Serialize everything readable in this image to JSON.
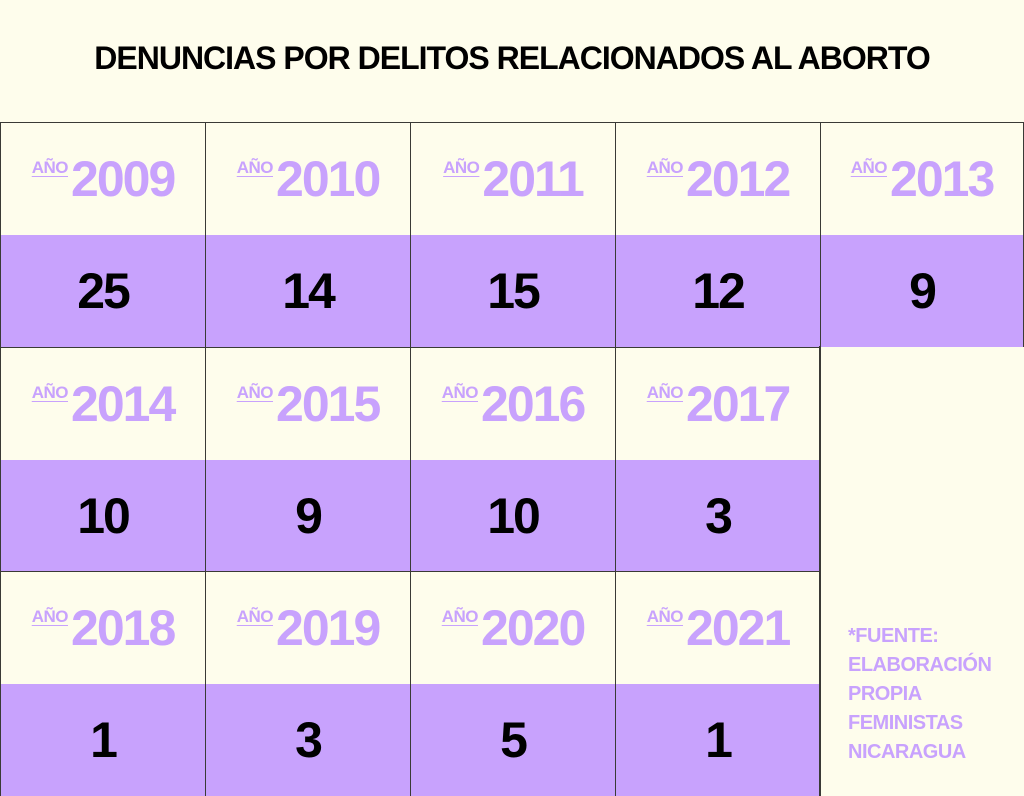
{
  "chart_data": {
    "type": "table",
    "title": "DENUNCIAS POR DELITOS RELACIONADOS AL ABORTO",
    "year_prefix": "AÑO",
    "categories": [
      "2009",
      "2010",
      "2011",
      "2012",
      "2013",
      "2014",
      "2015",
      "2016",
      "2017",
      "2018",
      "2019",
      "2020",
      "2021"
    ],
    "values": [
      25,
      14,
      15,
      12,
      9,
      10,
      9,
      10,
      3,
      1,
      3,
      5,
      1
    ],
    "colors": {
      "background": "#fefdec",
      "accent": "#c8a2fd",
      "text": "#000000"
    }
  },
  "source": [
    "*FUENTE:",
    "ELABORACIÓN",
    "PROPIA",
    "FEMINISTAS",
    "NICARAGUA"
  ]
}
